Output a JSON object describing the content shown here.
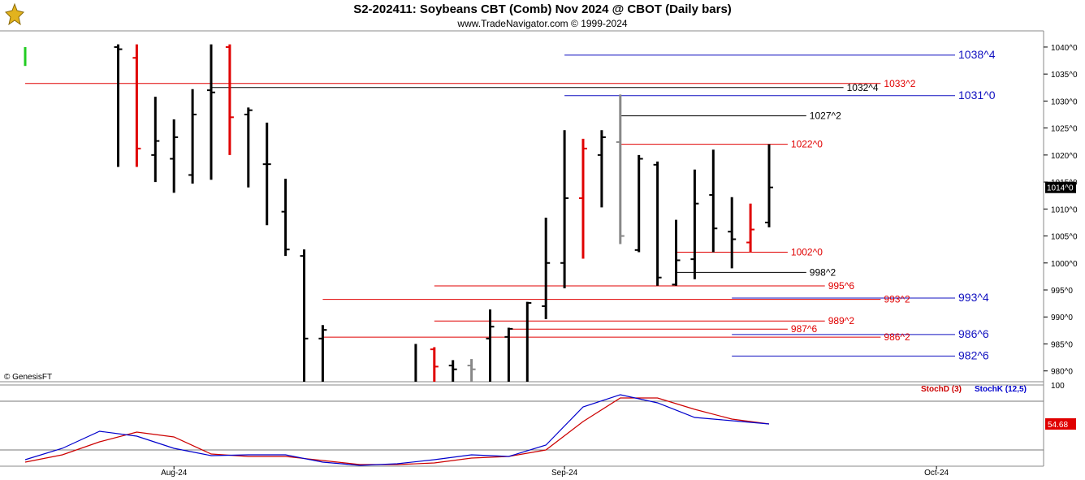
{
  "header": {
    "title": "S2-202411:  Soybeans CBT (Comb) Nov 2024 @ CBOT  (Daily bars)",
    "subtitle": "www.TradeNavigator.com © 1999-2024"
  },
  "copyright": "© GenesisFT",
  "chart_data": [
    {
      "type": "ohlc",
      "title": "S2-202411:  Soybeans CBT (Comb) Nov 2024 @ CBOT  (Daily bars)",
      "ylim": [
        978,
        1043
      ],
      "y_ticks": [
        "980^0",
        "985^0",
        "990^0",
        "995^0",
        "1000^0",
        "1005^0",
        "1010^0",
        "1015^0",
        "1020^0",
        "1025^0",
        "1030^0",
        "1035^0",
        "1040^0"
      ],
      "y_tick_values": [
        980,
        985,
        990,
        995,
        1000,
        1005,
        1010,
        1015,
        1020,
        1025,
        1030,
        1035,
        1040
      ],
      "x_labels": [
        {
          "label": "Aug-24",
          "index": 8
        },
        {
          "label": "Sep-24",
          "index": 29
        },
        {
          "label": "Oct-24",
          "index": 49
        }
      ],
      "last_price_label": "1014^0",
      "last_price_value": 1014.0,
      "bars": [
        {
          "i": 0,
          "o": null,
          "h": 1040.0,
          "l": 1036.5,
          "c": null,
          "color": "green"
        },
        {
          "i": 5,
          "o": 1040.0,
          "h": 1040.5,
          "l": 1017.8,
          "c": 1039.6,
          "color": "black"
        },
        {
          "i": 6,
          "o": 1038.0,
          "h": 1040.5,
          "l": 1017.8,
          "c": 1021.2,
          "color": "red"
        },
        {
          "i": 7,
          "o": 1020.0,
          "h": 1030.8,
          "l": 1015.0,
          "c": 1022.6,
          "color": "black"
        },
        {
          "i": 8,
          "o": 1019.3,
          "h": 1026.6,
          "l": 1013.0,
          "c": 1023.3,
          "color": "black"
        },
        {
          "i": 9,
          "o": 1016.3,
          "h": 1032.2,
          "l": 1014.7,
          "c": 1027.5,
          "color": "black"
        },
        {
          "i": 10,
          "o": 1032.0,
          "h": 1040.5,
          "l": 1015.4,
          "c": 1031.6,
          "color": "black"
        },
        {
          "i": 11,
          "o": 1040.0,
          "h": 1040.5,
          "l": 1020.0,
          "c": 1027.0,
          "color": "red"
        },
        {
          "i": 12,
          "o": 1027.5,
          "h": 1028.8,
          "l": 1014.0,
          "c": 1028.3,
          "color": "black"
        },
        {
          "i": 13,
          "o": 1018.3,
          "h": 1026.0,
          "l": 1007.0,
          "c": 1018.3,
          "color": "black"
        },
        {
          "i": 14,
          "o": 1009.5,
          "h": 1015.6,
          "l": 1001.3,
          "c": 1002.5,
          "color": "black"
        },
        {
          "i": 15,
          "o": 1001.3,
          "h": 1002.5,
          "l": 978.0,
          "c": 986.0,
          "color": "black"
        },
        {
          "i": 16,
          "o": 986.0,
          "h": 988.5,
          "l": 978.0,
          "c": 987.6,
          "color": "black"
        },
        {
          "i": 21,
          "o": null,
          "h": 985.0,
          "l": 978.0,
          "c": null,
          "color": "black"
        },
        {
          "i": 22,
          "o": 984.0,
          "h": 984.4,
          "l": 978.0,
          "c": 980.8,
          "color": "red"
        },
        {
          "i": 23,
          "o": 981.0,
          "h": 982.0,
          "l": 978.0,
          "c": 980.3,
          "color": "black"
        },
        {
          "i": 24,
          "o": 981.0,
          "h": 982.2,
          "l": 978.0,
          "c": 980.3,
          "color": "gray"
        },
        {
          "i": 25,
          "o": 986.0,
          "h": 991.4,
          "l": 978.0,
          "c": 988.2,
          "color": "black"
        },
        {
          "i": 26,
          "o": 986.3,
          "h": 988.0,
          "l": 978.0,
          "c": 987.8,
          "color": "black"
        },
        {
          "i": 27,
          "o": null,
          "h": 992.8,
          "l": 978.0,
          "c": 992.6,
          "color": "black"
        },
        {
          "i": 28,
          "o": 992.0,
          "h": 1008.4,
          "l": 989.6,
          "c": 1000.0,
          "color": "black"
        },
        {
          "i": 29,
          "o": 1000.0,
          "h": 1024.6,
          "l": 995.3,
          "c": 1012.0,
          "color": "black"
        },
        {
          "i": 30,
          "o": 1012.0,
          "h": 1023.0,
          "l": 1000.8,
          "c": 1021.2,
          "color": "red"
        },
        {
          "i": 31,
          "o": 1020.0,
          "h": 1024.6,
          "l": 1010.3,
          "c": 1023.3,
          "color": "black"
        },
        {
          "i": 32,
          "o": 1022.4,
          "h": 1031.2,
          "l": 1003.5,
          "c": 1005.0,
          "color": "gray"
        },
        {
          "i": 33,
          "o": 1002.4,
          "h": 1020.0,
          "l": 1002.0,
          "c": 1019.3,
          "color": "black"
        },
        {
          "i": 34,
          "o": 1018.2,
          "h": 1018.8,
          "l": 995.8,
          "c": 997.3,
          "color": "black"
        },
        {
          "i": 35,
          "o": 996.0,
          "h": 1008.0,
          "l": 995.8,
          "c": 1000.5,
          "color": "black"
        },
        {
          "i": 36,
          "o": 1000.7,
          "h": 1017.3,
          "l": 997.0,
          "c": 1011.0,
          "color": "black"
        },
        {
          "i": 37,
          "o": 1012.6,
          "h": 1021.0,
          "l": 1002.0,
          "c": 1006.4,
          "color": "black"
        },
        {
          "i": 38,
          "o": 1005.8,
          "h": 1012.2,
          "l": 999.0,
          "c": 1004.4,
          "color": "black"
        },
        {
          "i": 39,
          "o": 1003.8,
          "h": 1011.0,
          "l": 1002.0,
          "c": 1006.2,
          "color": "red"
        },
        {
          "i": 40,
          "o": 1007.5,
          "h": 1022.0,
          "l": 1006.6,
          "c": 1014.0,
          "color": "black"
        }
      ],
      "levels": [
        {
          "label": "1038^4",
          "value": 1038.5,
          "color": "blue",
          "x_start": 29,
          "x_end": 50
        },
        {
          "label": "1033^2",
          "value": 1033.25,
          "color": "red",
          "x_start": 0,
          "x_end": 46
        },
        {
          "label": "1032^4",
          "value": 1032.5,
          "color": "black",
          "x_start": 10,
          "x_end": 44
        },
        {
          "label": "1031^0",
          "value": 1031.0,
          "color": "blue",
          "x_start": 29,
          "x_end": 50
        },
        {
          "label": "1027^2",
          "value": 1027.25,
          "color": "black",
          "x_start": 32,
          "x_end": 42
        },
        {
          "label": "1022^0",
          "value": 1022.0,
          "color": "red",
          "x_start": 32,
          "x_end": 41
        },
        {
          "label": "1002^0",
          "value": 1002.0,
          "color": "red",
          "x_start": 35,
          "x_end": 41
        },
        {
          "label": "998^2",
          "value": 998.25,
          "color": "black",
          "x_start": 35,
          "x_end": 42
        },
        {
          "label": "995^6",
          "value": 995.75,
          "color": "red",
          "x_start": 22,
          "x_end": 43
        },
        {
          "label": "993^4",
          "value": 993.5,
          "color": "blue",
          "x_start": 38,
          "x_end": 50
        },
        {
          "label": "993^2",
          "value": 993.25,
          "color": "red",
          "x_start": 16,
          "x_end": 46
        },
        {
          "label": "989^2",
          "value": 989.25,
          "color": "red",
          "x_start": 22,
          "x_end": 43
        },
        {
          "label": "987^6",
          "value": 987.75,
          "color": "red",
          "x_start": 26,
          "x_end": 41
        },
        {
          "label": "986^6",
          "value": 986.75,
          "color": "blue",
          "x_start": 38,
          "x_end": 50
        },
        {
          "label": "986^2",
          "value": 986.25,
          "color": "red",
          "x_start": 16,
          "x_end": 46
        },
        {
          "label": "982^6",
          "value": 982.75,
          "color": "blue",
          "x_start": 38,
          "x_end": 50
        }
      ]
    },
    {
      "type": "line",
      "title": "Stochastic",
      "ylim": [
        0,
        100
      ],
      "y_ticks": [
        "100"
      ],
      "last_value_label": "54.68",
      "reference_lines": [
        80,
        20
      ],
      "series": [
        {
          "name": "StochD (3)",
          "color": "#cc0000",
          "x": [
            0,
            2,
            4,
            6,
            8,
            10,
            12,
            14,
            16,
            18,
            20,
            22,
            24,
            26,
            28,
            30,
            32,
            34,
            36,
            38,
            40
          ],
          "values": [
            5,
            14,
            30,
            42,
            36,
            15,
            12,
            12,
            7,
            2,
            2,
            4,
            10,
            12,
            20,
            55,
            84,
            84,
            70,
            58,
            52
          ]
        },
        {
          "name": "StochK (12,5)",
          "color": "#0000cc",
          "x": [
            0,
            2,
            4,
            6,
            8,
            10,
            12,
            14,
            16,
            18,
            20,
            22,
            24,
            26,
            28,
            30,
            32,
            34,
            36,
            38,
            40
          ],
          "values": [
            8,
            22,
            43,
            37,
            22,
            13,
            14,
            14,
            5,
            1,
            3,
            8,
            14,
            12,
            26,
            73,
            88,
            78,
            60,
            56,
            52
          ]
        }
      ]
    }
  ]
}
